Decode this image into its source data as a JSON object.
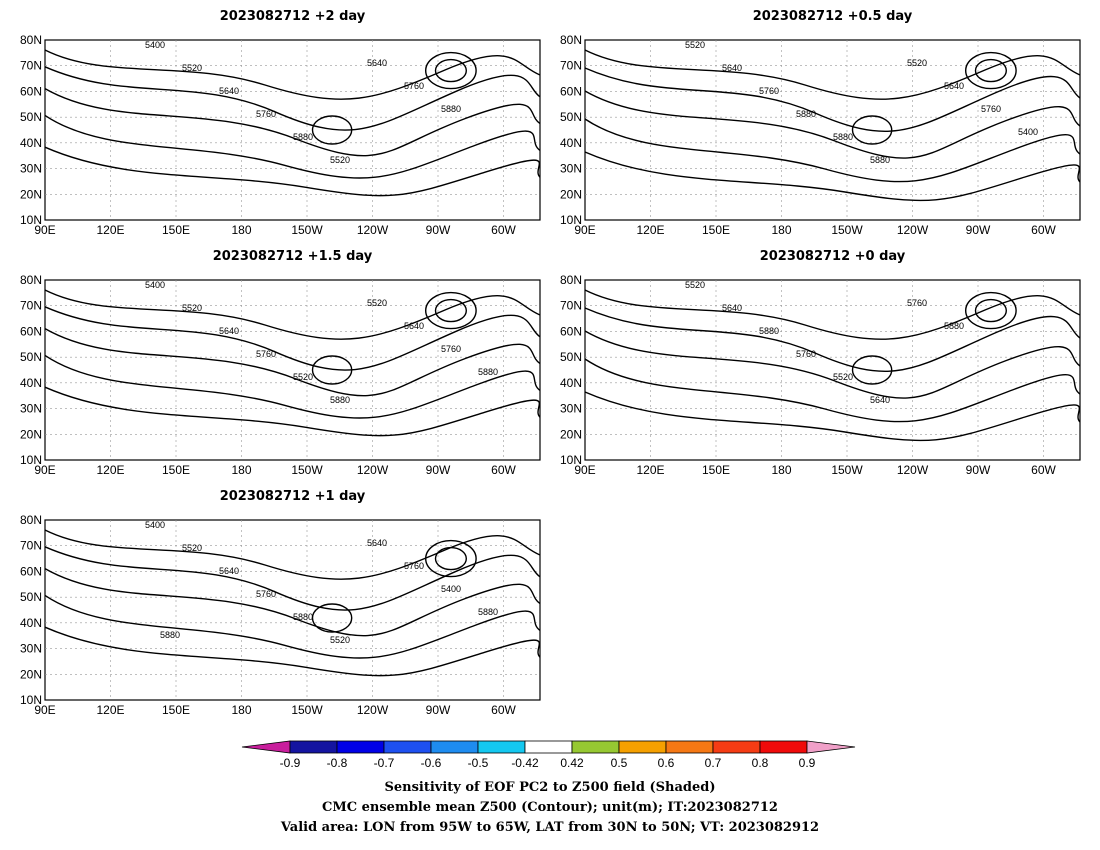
{
  "panels": [
    {
      "title": "2023082712 +2 day",
      "clabels": [
        "5400",
        "5520",
        "5640",
        "5760",
        "5880",
        "5520",
        "5640",
        "5760",
        "5880"
      ]
    },
    {
      "title": "2023082712 +0.5 day",
      "clabels": [
        "5520",
        "5640",
        "5760",
        "5880",
        "5880",
        "5880",
        "5520",
        "5640",
        "5760",
        "5400"
      ]
    },
    {
      "title": "2023082712 +1.5 day",
      "clabels": [
        "5400",
        "5520",
        "5640",
        "5760",
        "5520",
        "5880",
        "5520",
        "5640",
        "5760",
        "5880"
      ]
    },
    {
      "title": "2023082712 +0 day",
      "clabels": [
        "5520",
        "5640",
        "5880",
        "5760",
        "5520",
        "5640",
        "5760",
        "5880"
      ]
    },
    {
      "title": "2023082712 +1 day",
      "clabels": [
        "5400",
        "5520",
        "5640",
        "5760",
        "5880",
        "5520",
        "5640",
        "5760",
        "5400",
        "5880",
        "5880"
      ]
    }
  ],
  "axes": {
    "lat_labels": [
      "80N",
      "70N",
      "60N",
      "50N",
      "40N",
      "30N",
      "20N",
      "10N"
    ],
    "lon_labels": [
      "90E",
      "120E",
      "150E",
      "180",
      "150W",
      "120W",
      "90W",
      "60W"
    ]
  },
  "colorbar": {
    "ticks": [
      "-0.9",
      "-0.8",
      "-0.7",
      "-0.6",
      "-0.5",
      "-0.42",
      "0.42",
      "0.5",
      "0.6",
      "0.7",
      "0.8",
      "0.9"
    ],
    "colors": [
      "#c81e9c",
      "#1414a0",
      "#0000e6",
      "#1e50f0",
      "#1e8cf0",
      "#14c8f0",
      "#ffffff",
      "#96c832",
      "#f5a000",
      "#f57814",
      "#f53c14",
      "#f00a0a",
      "#f0a0c8"
    ]
  },
  "caption": [
    "Sensitivity of EOF PC2 to Z500 field (Shaded)",
    "CMC ensemble mean Z500 (Contour); unit(m); IT:2023082712",
    "Valid area: LON from 95W to 65W, LAT from 30N to 50N; VT: 2023082912"
  ]
}
